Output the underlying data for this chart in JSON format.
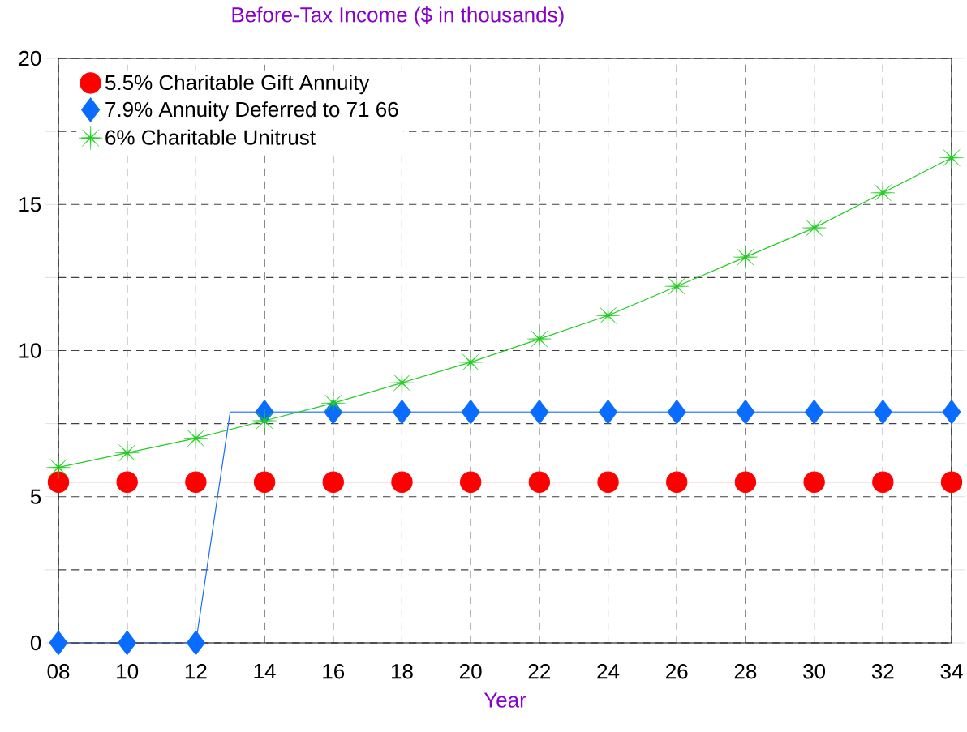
{
  "chart_data": {
    "type": "line",
    "title": "Before-Tax Income ($ in thousands)",
    "xlabel": "Year",
    "x": [
      8,
      10,
      12,
      14,
      16,
      18,
      20,
      22,
      24,
      26,
      28,
      30,
      32,
      34
    ],
    "series": [
      {
        "name": "5.5% Charitable Gift Annuity",
        "color": "#ff0000",
        "marker": "circle",
        "values": [
          5.5,
          5.5,
          5.5,
          5.5,
          5.5,
          5.5,
          5.5,
          5.5,
          5.5,
          5.5,
          5.5,
          5.5,
          5.5,
          5.5
        ]
      },
      {
        "color": "#1a6dff",
        "marker": "none",
        "x": [
          8,
          10,
          12,
          13,
          14,
          16,
          18,
          20,
          22,
          24,
          26,
          28,
          30,
          32,
          34
        ],
        "values": [
          0,
          0,
          0,
          7.9,
          7.9,
          7.9,
          7.9,
          7.9,
          7.9,
          7.9,
          7.9,
          7.9,
          7.9,
          7.9,
          7.9
        ]
      },
      {
        "name": "7.9% Annuity Deferred to 71 66",
        "type": "scatter",
        "color": "#0a6cff",
        "marker": "diamond",
        "values": [
          0,
          0,
          0,
          7.9,
          7.9,
          7.9,
          7.9,
          7.9,
          7.9,
          7.9,
          7.9,
          7.9,
          7.9,
          7.9
        ]
      },
      {
        "name": "6% Charitable Unitrust",
        "color": "#22cc22",
        "marker": "star",
        "values": [
          6.0,
          6.5,
          7.0,
          7.6,
          8.2,
          8.9,
          9.6,
          10.4,
          11.2,
          12.2,
          13.2,
          14.2,
          15.4,
          16.6
        ]
      }
    ],
    "xlim": [
      8,
      34
    ],
    "ylim": [
      0,
      20
    ],
    "xticks": [
      {
        "value": 8,
        "label": "08"
      },
      10,
      12,
      14,
      16,
      18,
      20,
      22,
      24,
      26,
      28,
      30,
      32,
      34
    ],
    "yticks": [
      0,
      {
        "value": 2.5,
        "label": null
      },
      5,
      {
        "value": 7.5,
        "label": null
      },
      10,
      {
        "value": 12.5,
        "label": null
      },
      15,
      {
        "value": 17.5,
        "label": null
      },
      20
    ],
    "grid": true,
    "legend": "top left",
    "line_style": "solid"
  }
}
